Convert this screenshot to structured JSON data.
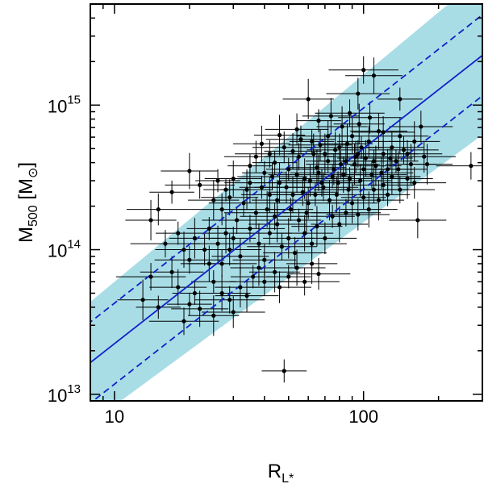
{
  "chart_data": {
    "type": "scatter",
    "title": "",
    "x_scale": "log",
    "y_scale": "log",
    "xlim": [
      8,
      300
    ],
    "ylim": [
      9000000000000.0,
      5000000000000000.0
    ],
    "xlabel": {
      "main": "R",
      "sub": "L*"
    },
    "ylabel": {
      "main": "M",
      "sub": "500",
      "rest": " [M",
      "sun_symbol": "⊙",
      "close": "]"
    },
    "x_ticks": [
      {
        "value": 10,
        "label": "10"
      },
      {
        "value": 100,
        "label": "100"
      }
    ],
    "y_ticks": [
      {
        "value": 10000000000000.0,
        "base": "10",
        "exp": "13"
      },
      {
        "value": 100000000000000.0,
        "base": "10",
        "exp": "14"
      },
      {
        "value": 1000000000000000.0,
        "base": "10",
        "exp": "15"
      }
    ],
    "fit": {
      "slope": 1.35,
      "log10_norm_at_1": 12.0,
      "color": "#1020c8",
      "scatter_dex_dashed": 0.28,
      "band_dex_low_x": 0.42,
      "band_dex_high_x": 0.55,
      "band_color": "#a8dde6"
    },
    "points": [
      [
        48,
        14500000000000.0
      ],
      [
        165,
        160000000000000.0
      ],
      [
        270,
        380000000000000.0
      ],
      [
        180,
        390000000000000.0
      ],
      [
        120,
        650000000000000.0
      ],
      [
        140,
        1100000000000000.0
      ],
      [
        110,
        1600000000000000.0
      ],
      [
        100,
        1750000000000000.0
      ],
      [
        60,
        1100000000000000.0
      ],
      [
        95,
        1200000000000000.0
      ],
      [
        15,
        40000000000000.0
      ],
      [
        18,
        55000000000000.0
      ],
      [
        14,
        65000000000000.0
      ],
      [
        13,
        45000000000000.0
      ],
      [
        17,
        70000000000000.0
      ],
      [
        20,
        42000000000000.0
      ],
      [
        22,
        39000000000000.0
      ],
      [
        19,
        32000000000000.0
      ],
      [
        25,
        35000000000000.0
      ],
      [
        30,
        37000000000000.0
      ],
      [
        21,
        50000000000000.0
      ],
      [
        24,
        80000000000000.0
      ],
      [
        16,
        110000000000000.0
      ],
      [
        14,
        160000000000000.0
      ],
      [
        15,
        190000000000000.0
      ],
      [
        17,
        250000000000000.0
      ],
      [
        20,
        350000000000000.0
      ],
      [
        22,
        280000000000000.0
      ],
      [
        25,
        220000000000000.0
      ],
      [
        27,
        190000000000000.0
      ],
      [
        28,
        260000000000000.0
      ],
      [
        30,
        310000000000000.0
      ],
      [
        33,
        210000000000000.0
      ],
      [
        35,
        290000000000000.0
      ],
      [
        37,
        440000000000000.0
      ],
      [
        40,
        340000000000000.0
      ],
      [
        42,
        240000000000000.0
      ],
      [
        44,
        170000000000000.0
      ],
      [
        46,
        290000000000000.0
      ],
      [
        48,
        510000000000000.0
      ],
      [
        50,
        360000000000000.0
      ],
      [
        52,
        240000000000000.0
      ],
      [
        55,
        440000000000000.0
      ],
      [
        58,
        310000000000000.0
      ],
      [
        60,
        210000000000000.0
      ],
      [
        62,
        560000000000000.0
      ],
      [
        65,
        370000000000000.0
      ],
      [
        68,
        290000000000000.0
      ],
      [
        70,
        460000000000000.0
      ],
      [
        72,
        610000000000000.0
      ],
      [
        75,
        320000000000000.0
      ],
      [
        78,
        240000000000000.0
      ],
      [
        80,
        510000000000000.0
      ],
      [
        82,
        710000000000000.0
      ],
      [
        85,
        410000000000000.0
      ],
      [
        88,
        310000000000000.0
      ],
      [
        90,
        610000000000000.0
      ],
      [
        95,
        460000000000000.0
      ],
      [
        100,
        360000000000000.0
      ],
      [
        105,
        560000000000000.0
      ],
      [
        110,
        410000000000000.0
      ],
      [
        115,
        660000000000000.0
      ],
      [
        120,
        460000000000000.0
      ],
      [
        125,
        360000000000000.0
      ],
      [
        130,
        510000000000000.0
      ],
      [
        135,
        410000000000000.0
      ],
      [
        140,
        610000000000000.0
      ],
      [
        150,
        460000000000000.0
      ],
      [
        160,
        560000000000000.0
      ],
      [
        170,
        710000000000000.0
      ],
      [
        30,
        120000000000000.0
      ],
      [
        32,
        90000000000000.0
      ],
      [
        35,
        140000000000000.0
      ],
      [
        38,
        110000000000000.0
      ],
      [
        40,
        85000000000000.0
      ],
      [
        42,
        130000000000000.0
      ],
      [
        45,
        150000000000000.0
      ],
      [
        47,
        105000000000000.0
      ],
      [
        50,
        120000000000000.0
      ],
      [
        53,
        95000000000000.0
      ],
      [
        55,
        160000000000000.0
      ],
      [
        58,
        130000000000000.0
      ],
      [
        62,
        110000000000000.0
      ],
      [
        65,
        145000000000000.0
      ],
      [
        70,
        120000000000000.0
      ],
      [
        75,
        170000000000000.0
      ],
      [
        80,
        150000000000000.0
      ],
      [
        85,
        180000000000000.0
      ],
      [
        90,
        210000000000000.0
      ],
      [
        95,
        175000000000000.0
      ],
      [
        100,
        230000000000000.0
      ],
      [
        105,
        190000000000000.0
      ],
      [
        110,
        260000000000000.0
      ],
      [
        115,
        220000000000000.0
      ],
      [
        120,
        280000000000000.0
      ],
      [
        125,
        240000000000000.0
      ],
      [
        130,
        320000000000000.0
      ],
      [
        140,
        260000000000000.0
      ],
      [
        150,
        310000000000000.0
      ],
      [
        160,
        290000000000000.0
      ],
      [
        18,
        130000000000000.0
      ],
      [
        19,
        100000000000000.0
      ],
      [
        20,
        85000000000000.0
      ],
      [
        21,
        120000000000000.0
      ],
      [
        23,
        100000000000000.0
      ],
      [
        24,
        140000000000000.0
      ],
      [
        26,
        110000000000000.0
      ],
      [
        27,
        80000000000000.0
      ],
      [
        28,
        130000000000000.0
      ],
      [
        29,
        100000000000000.0
      ],
      [
        36,
        65000000000000.0
      ],
      [
        38,
        75000000000000.0
      ],
      [
        40,
        60000000000000.0
      ],
      [
        44,
        70000000000000.0
      ],
      [
        46,
        55000000000000.0
      ],
      [
        50,
        65000000000000.0
      ],
      [
        54,
        75000000000000.0
      ],
      [
        58,
        60000000000000.0
      ],
      [
        62,
        80000000000000.0
      ],
      [
        66,
        68000000000000.0
      ],
      [
        25,
        60000000000000.0
      ],
      [
        27,
        50000000000000.0
      ],
      [
        29,
        45000000000000.0
      ],
      [
        32,
        55000000000000.0
      ],
      [
        34,
        48000000000000.0
      ],
      [
        26,
        300000000000000.0
      ],
      [
        29,
        230000000000000.0
      ],
      [
        31,
        160000000000000.0
      ],
      [
        34,
        260000000000000.0
      ],
      [
        37,
        180000000000000.0
      ],
      [
        39,
        270000000000000.0
      ],
      [
        41,
        190000000000000.0
      ],
      [
        43,
        320000000000000.0
      ],
      [
        45,
        220000000000000.0
      ],
      [
        49,
        270000000000000.0
      ],
      [
        51,
        190000000000000.0
      ],
      [
        54,
        330000000000000.0
      ],
      [
        57,
        250000000000000.0
      ],
      [
        59,
        180000000000000.0
      ],
      [
        61,
        300000000000000.0
      ],
      [
        64,
        240000000000000.0
      ],
      [
        66,
        340000000000000.0
      ],
      [
        69,
        270000000000000.0
      ],
      [
        73,
        220000000000000.0
      ],
      [
        76,
        360000000000000.0
      ],
      [
        79,
        290000000000000.0
      ],
      [
        83,
        330000000000000.0
      ],
      [
        87,
        260000000000000.0
      ],
      [
        92,
        390000000000000.0
      ],
      [
        97,
        300000000000000.0
      ],
      [
        44,
        400000000000000.0
      ],
      [
        52,
        480000000000000.0
      ],
      [
        56,
        580000000000000.0
      ],
      [
        63,
        460000000000000.0
      ],
      [
        67,
        530000000000000.0
      ],
      [
        72,
        410000000000000.0
      ],
      [
        77,
        490000000000000.0
      ],
      [
        81,
        390000000000000.0
      ],
      [
        86,
        540000000000000.0
      ],
      [
        93,
        440000000000000.0
      ],
      [
        98,
        510000000000000.0
      ],
      [
        102,
        430000000000000.0
      ],
      [
        108,
        330000000000000.0
      ],
      [
        112,
        380000000000000.0
      ],
      [
        118,
        340000000000000.0
      ],
      [
        128,
        430000000000000.0
      ],
      [
        138,
        360000000000000.0
      ],
      [
        145,
        490000000000000.0
      ],
      [
        155,
        390000000000000.0
      ],
      [
        175,
        440000000000000.0
      ],
      [
        35,
        380000000000000.0
      ],
      [
        39,
        540000000000000.0
      ],
      [
        42,
        460000000000000.0
      ],
      [
        46,
        620000000000000.0
      ],
      [
        54,
        680000000000000.0
      ],
      [
        66,
        780000000000000.0
      ],
      [
        74,
        840000000000000.0
      ],
      [
        88,
        880000000000000.0
      ],
      [
        96,
        740000000000000.0
      ],
      [
        106,
        820000000000000.0
      ]
    ]
  }
}
